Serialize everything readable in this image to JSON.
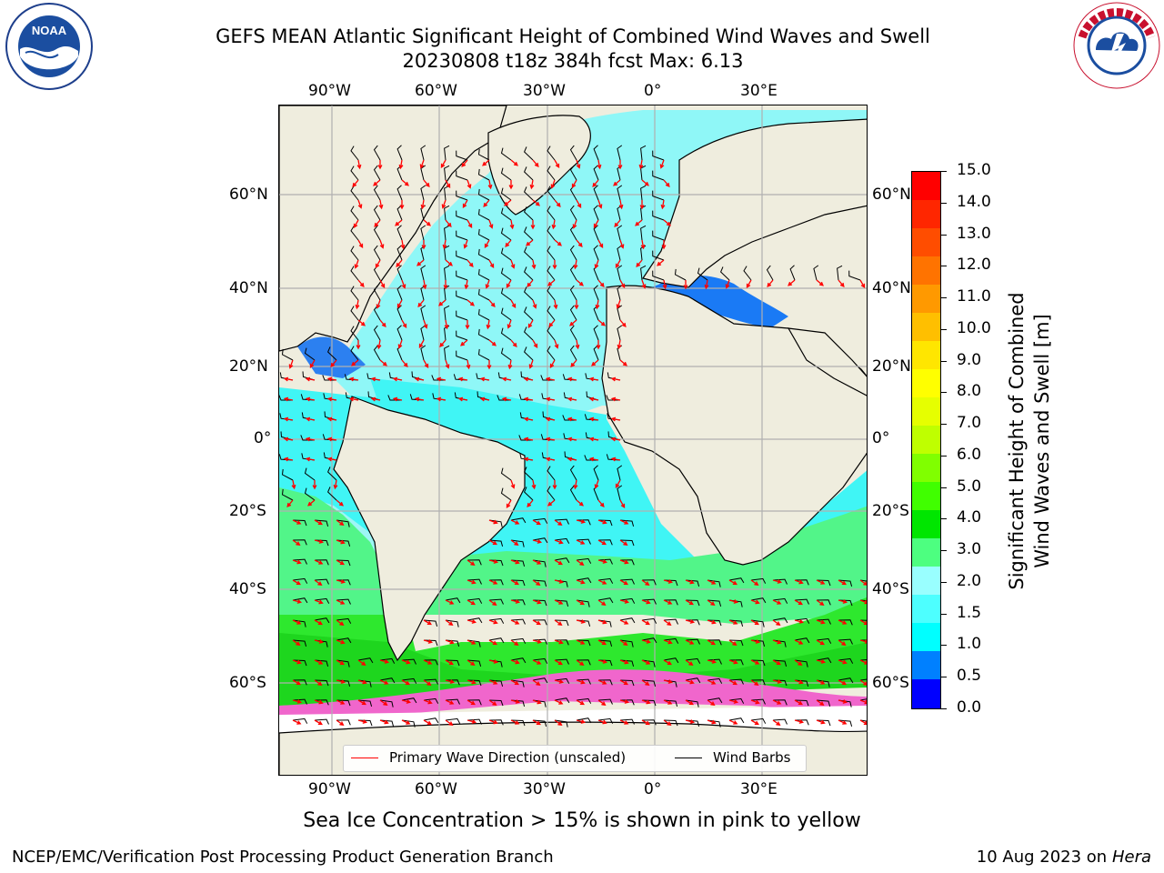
{
  "header": {
    "title_line1": "GEFS MEAN Atlantic Significant Height of Combined Wind Waves and Swell",
    "title_line2": "20230808 t18z 384h fcst    Max: 6.13"
  },
  "logos": {
    "noaa_text": "NOAA",
    "nws_text": "NATIONAL WEATHER SERVICE",
    "noaa_ring_text": "NATIONAL OCEANIC AND ATMOSPHERIC ADMINISTRATION · U.S. DEPARTMENT OF COMMERCE"
  },
  "map": {
    "lon_labels": [
      "90°W",
      "60°W",
      "30°W",
      "0°",
      "30°E"
    ],
    "lat_labels_left": [
      "60°N",
      "40°N",
      "20°N",
      "0°",
      "20°S",
      "40°S",
      "60°S"
    ],
    "lat_labels_right": [
      "60°N",
      "40°N",
      "20°N",
      "0°",
      "20°S",
      "40°S",
      "60°S"
    ],
    "land_color": "#efedde",
    "grid_color": "#b0b0b0"
  },
  "legend": {
    "wave_label": "Primary Wave Direction (unscaled)",
    "wind_label": "Wind Barbs",
    "wave_color": "#ff0000",
    "wind_color": "#000000"
  },
  "colorbar": {
    "label_line1": "Significant Height of Combined",
    "label_line2": "Wind Waves and Swell [m]",
    "ticks": [
      "15.0",
      "14.0",
      "13.0",
      "12.0",
      "11.0",
      "10.0",
      "9.0",
      "8.0",
      "7.0",
      "6.0",
      "5.0",
      "4.0",
      "3.0",
      "2.0",
      "1.5",
      "1.0",
      "0.5",
      "0.0"
    ],
    "colors_top_to_bottom": [
      "#ff0000",
      "#ff2600",
      "#ff4d00",
      "#ff7300",
      "#ff9900",
      "#ffbf00",
      "#ffe600",
      "#ffff00",
      "#e6ff00",
      "#bfff00",
      "#80ff00",
      "#40ff00",
      "#00e600",
      "#4dff80",
      "#99ffff",
      "#4dffff",
      "#00ffff",
      "#0080ff",
      "#0000ff"
    ]
  },
  "footer": {
    "note": "Sea Ice Concentration > 15% is shown in pink to yellow",
    "left": "NCEP/EMC/Verification Post Processing Product Generation Branch",
    "right_date": "10 Aug 2023 on",
    "right_host": "Hera"
  }
}
